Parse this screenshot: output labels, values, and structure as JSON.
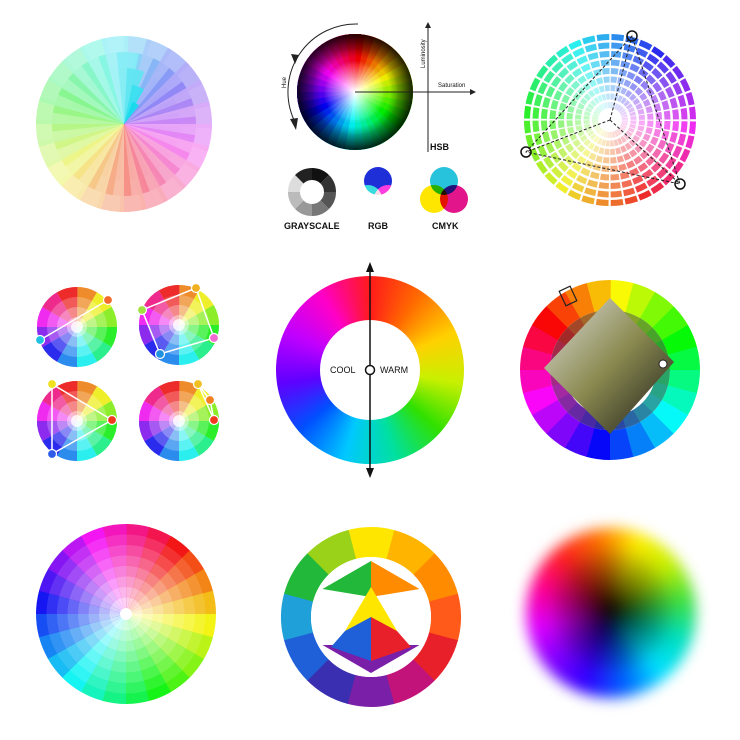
{
  "hsb_panel": {
    "axis_hue": "Hue",
    "axis_luminosity": "Luminosity",
    "axis_saturation": "Saturation",
    "model_label": "HSB"
  },
  "models": [
    {
      "label": "GRAYSCALE"
    },
    {
      "label": "RGB"
    },
    {
      "label": "CMYK"
    }
  ],
  "temperature_wheel": {
    "cool_label": "COOL",
    "warm_label": "WARM"
  },
  "colors": {
    "red": "#e8202a",
    "green": "#22c22e",
    "blue": "#1f4fd8",
    "cyan": "#27c3dd",
    "magenta": "#e2168a",
    "yellow": "#ffe600",
    "orange": "#ff7a1a",
    "accent_orange": "#f26b2a",
    "accent_blue": "#2e7be8"
  }
}
